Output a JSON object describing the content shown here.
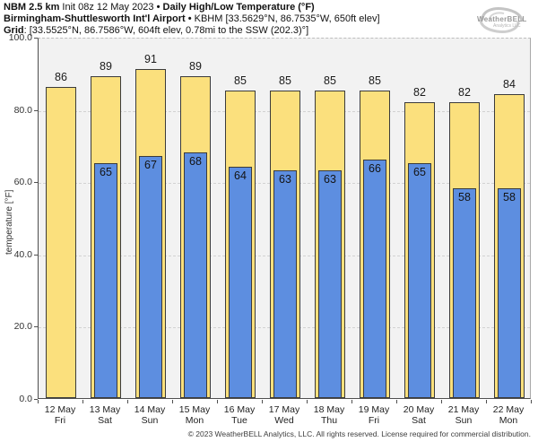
{
  "header": {
    "line1": {
      "model": "NBM 2.5 km",
      "init": " Init 08z 12 May 2023 ",
      "title": "• Daily High/Low Temperature (°F)"
    },
    "line2": {
      "station": "Birmingham-Shuttlesworth Int'l Airport •",
      "details": " KBHM [33.5629°N, 86.7535°W, 650ft elev]"
    },
    "line3": {
      "label": "Grid",
      "details": ": [33.5525°N, 86.7586°W, 604ft elev, 0.78mi to the SSW (202.3)°]"
    }
  },
  "logo": {
    "name": "WeatherBELL",
    "sub": "Analytics LLC"
  },
  "chart_data": {
    "type": "bar",
    "title": "NBM 2.5 km Init 08z 12 May 2023 • Daily High/Low Temperature (°F)",
    "ylabel": "temperature [°F]",
    "ylim": [
      0,
      100
    ],
    "yticks": [
      0,
      20,
      40,
      60,
      80,
      100
    ],
    "ytick_labels": [
      "0.0",
      "20.0",
      "40.0",
      "60.0",
      "80.0",
      "100.0"
    ],
    "grid": "horizontal dashed at 20/40/60/80",
    "legend_position": "none",
    "categories": [
      {
        "date": "12 May",
        "day": "Fri"
      },
      {
        "date": "13 May",
        "day": "Sat"
      },
      {
        "date": "14 May",
        "day": "Sun"
      },
      {
        "date": "15 May",
        "day": "Mon"
      },
      {
        "date": "16 May",
        "day": "Tue"
      },
      {
        "date": "17 May",
        "day": "Wed"
      },
      {
        "date": "18 May",
        "day": "Thu"
      },
      {
        "date": "19 May",
        "day": "Fri"
      },
      {
        "date": "20 May",
        "day": "Sat"
      },
      {
        "date": "21 May",
        "day": "Sun"
      },
      {
        "date": "22 May",
        "day": "Mon"
      }
    ],
    "series": [
      {
        "name": "Daily High",
        "values": [
          86,
          89,
          91,
          89,
          85,
          85,
          85,
          85,
          82,
          82,
          84
        ]
      },
      {
        "name": "Daily Low",
        "values": [
          null,
          65,
          67,
          68,
          64,
          63,
          63,
          66,
          65,
          58,
          58
        ]
      }
    ],
    "colors": {
      "high_fill": "#FBE07D",
      "low_fill": "#5D8EE0",
      "bar_border": "#3B3B3B",
      "plot_bg": "#F2F2F2",
      "gridline": "#D2D2D2"
    }
  },
  "footer": {
    "copyright": "© 2023 WeatherBELL Analytics, LLC. All rights reserved. License required for commercial distribution."
  }
}
